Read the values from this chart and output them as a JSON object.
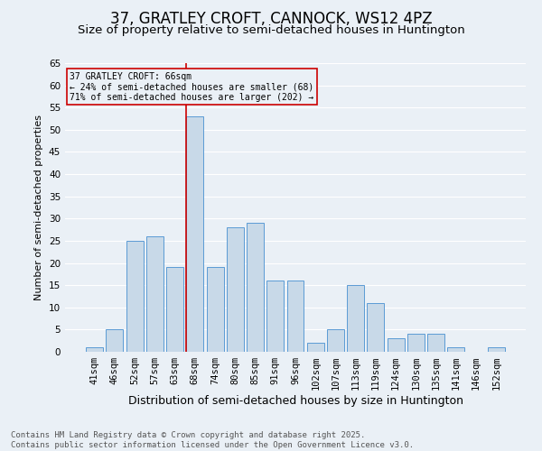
{
  "title": "37, GRATLEY CROFT, CANNOCK, WS12 4PZ",
  "subtitle": "Size of property relative to semi-detached houses in Huntington",
  "xlabel": "Distribution of semi-detached houses by size in Huntington",
  "ylabel": "Number of semi-detached properties",
  "categories": [
    "41sqm",
    "46sqm",
    "52sqm",
    "57sqm",
    "63sqm",
    "68sqm",
    "74sqm",
    "80sqm",
    "85sqm",
    "91sqm",
    "96sqm",
    "102sqm",
    "107sqm",
    "113sqm",
    "119sqm",
    "124sqm",
    "130sqm",
    "135sqm",
    "141sqm",
    "146sqm",
    "152sqm"
  ],
  "values": [
    1,
    5,
    25,
    26,
    19,
    53,
    19,
    28,
    29,
    16,
    16,
    2,
    5,
    15,
    11,
    3,
    4,
    4,
    1,
    0,
    1
  ],
  "bar_color": "#c8d9e8",
  "bar_edge_color": "#5b9bd5",
  "highlight_index": 5,
  "highlight_line_color": "#cc0000",
  "ylim": [
    0,
    65
  ],
  "yticks": [
    0,
    5,
    10,
    15,
    20,
    25,
    30,
    35,
    40,
    45,
    50,
    55,
    60,
    65
  ],
  "annotation_title": "37 GRATLEY CROFT: 66sqm",
  "annotation_line1": "← 24% of semi-detached houses are smaller (68)",
  "annotation_line2": "71% of semi-detached houses are larger (202) →",
  "annotation_box_color": "#cc0000",
  "footer_line1": "Contains HM Land Registry data © Crown copyright and database right 2025.",
  "footer_line2": "Contains public sector information licensed under the Open Government Licence v3.0.",
  "bg_color": "#eaf0f6",
  "grid_color": "#ffffff",
  "title_fontsize": 12,
  "subtitle_fontsize": 9.5,
  "tick_fontsize": 7.5,
  "ylabel_fontsize": 8,
  "xlabel_fontsize": 9,
  "footer_fontsize": 6.5,
  "annotation_fontsize": 7
}
